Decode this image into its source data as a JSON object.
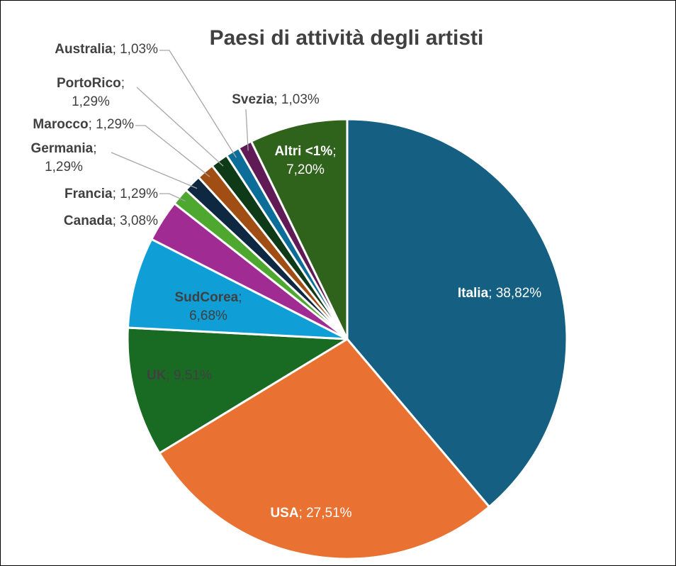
{
  "chart_data": {
    "type": "pie",
    "title": "Paesi di attività degli artisti",
    "start_angle_deg": 0,
    "direction": "clockwise",
    "slices": [
      {
        "name": "Italia",
        "value": 38.82,
        "label": "38,82%",
        "color": "#156082"
      },
      {
        "name": "USA",
        "value": 27.51,
        "label": "27,51%",
        "color": "#E97132"
      },
      {
        "name": "UK",
        "value": 9.51,
        "label": "9,51%",
        "color": "#196B24"
      },
      {
        "name": "SudCorea",
        "value": 6.68,
        "label": "6,68%",
        "color": "#0F9ED5"
      },
      {
        "name": "Canada",
        "value": 3.08,
        "label": "3,08%",
        "color": "#A02B93"
      },
      {
        "name": "Francia",
        "value": 1.29,
        "label": "1,29%",
        "color": "#4EA72E"
      },
      {
        "name": "Germania",
        "value": 1.29,
        "label": "1,29%",
        "color": "#0E2841"
      },
      {
        "name": "Marocco",
        "value": 1.29,
        "label": "1,29%",
        "color": "#A14E15"
      },
      {
        "name": "PortoRico",
        "value": 1.29,
        "label": "1,29%",
        "color": "#0E3A17"
      },
      {
        "name": "Australia",
        "value": 1.03,
        "label": "1,03%",
        "color": "#0C6E98"
      },
      {
        "name": "Svezia",
        "value": 1.03,
        "label": "1,03%",
        "color": "#601A56"
      },
      {
        "name": "Altri <1%",
        "value": 7.2,
        "label": "7,20%",
        "color": "#2F621B"
      }
    ]
  }
}
